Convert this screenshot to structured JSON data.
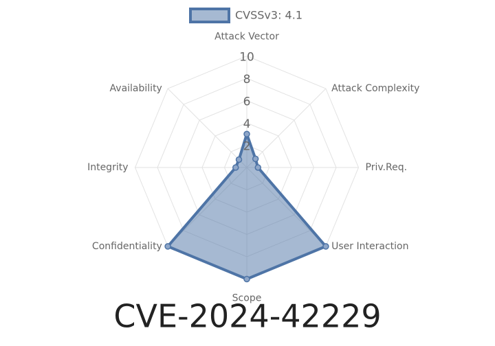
{
  "chart_data": {
    "type": "radar",
    "title": "CVE-2024-42229",
    "categories": [
      "Attack Vector",
      "Attack Complexity",
      "Priv.Req.",
      "User Interaction",
      "Scope",
      "Confidentiality",
      "Integrity",
      "Availability"
    ],
    "series": [
      {
        "name": "CVSSv3: 4.1",
        "color": "#4e74a6",
        "values": [
          3,
          1.1,
          1,
          10,
          10,
          10,
          1,
          1
        ]
      }
    ],
    "rlim": [
      0,
      10
    ],
    "rticks": [
      2,
      4,
      6,
      8,
      10
    ],
    "grid": true,
    "legend": "top"
  }
}
